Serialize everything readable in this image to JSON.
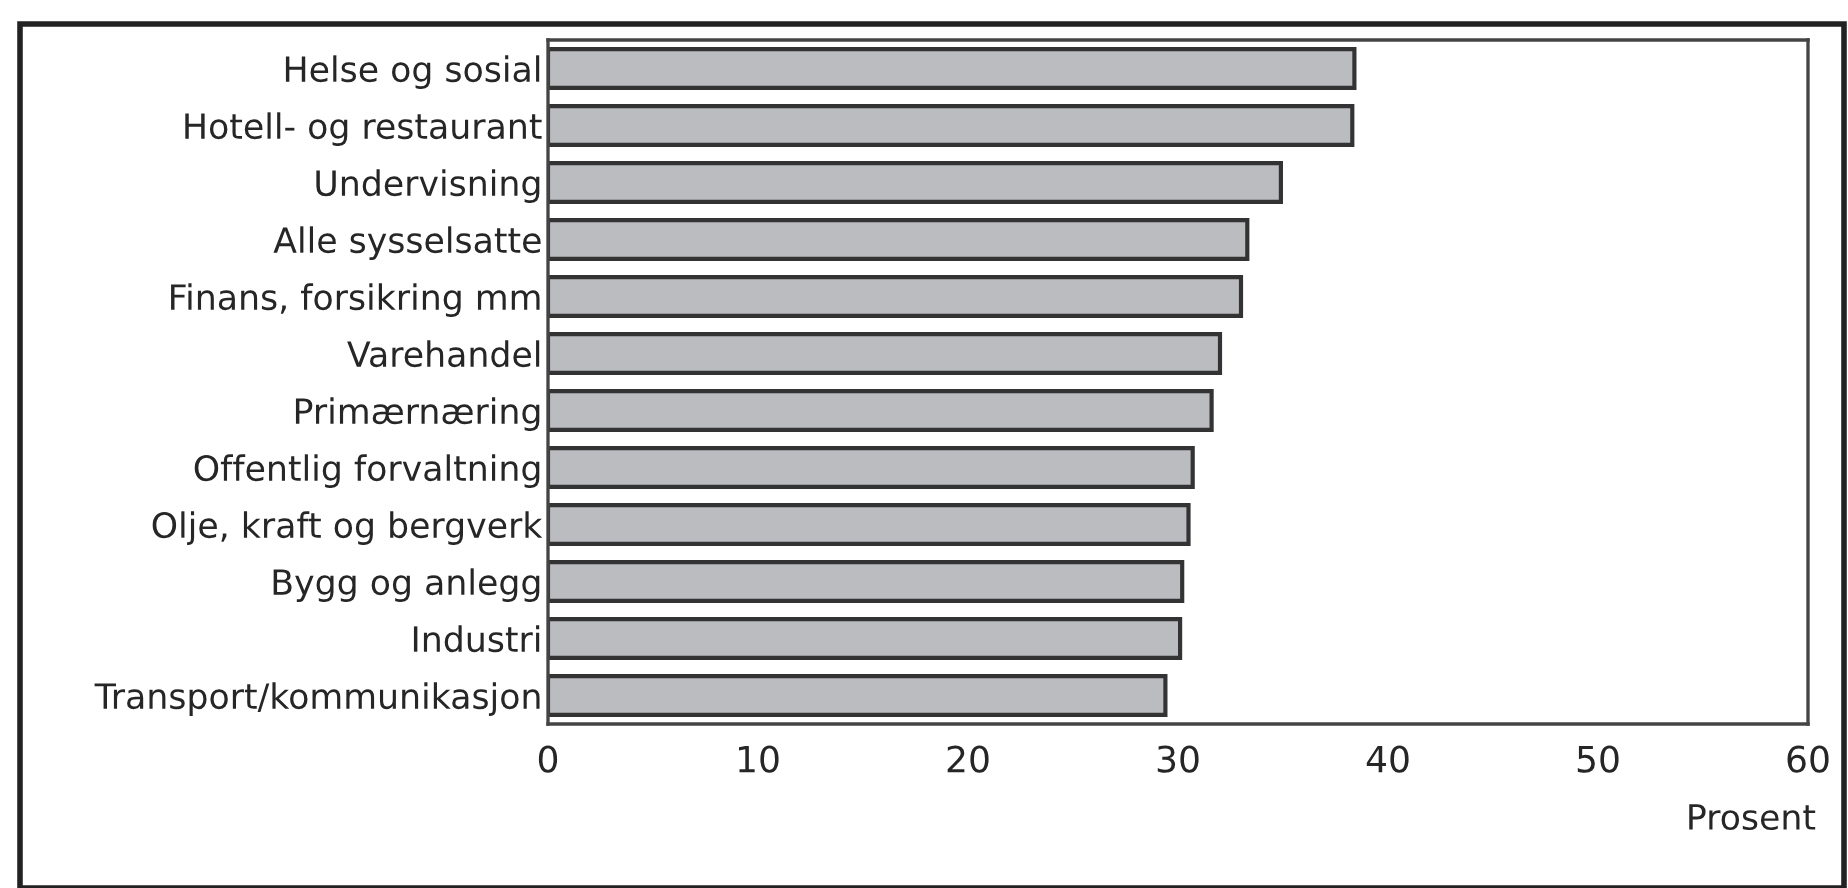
{
  "chart_data": {
    "type": "bar",
    "orientation": "horizontal",
    "categories": [
      "Helse og sosial",
      "Hotell- og restaurant",
      "Undervisning",
      "Alle sysselsatte",
      "Finans, forsikring mm",
      "Varehandel",
      "Primærnæring",
      "Offentlig forvaltning",
      "Olje, kraft og bergverk",
      "Bygg og anlegg",
      "Industri",
      "Transport/kommunikasjon"
    ],
    "values": [
      38.4,
      38.3,
      34.9,
      33.3,
      33.0,
      32.0,
      31.6,
      30.7,
      30.5,
      30.2,
      30.1,
      29.4
    ],
    "color": "#bbbcc0",
    "xlim": [
      0,
      60
    ],
    "xticks": [
      0,
      10,
      20,
      30,
      40,
      50,
      60
    ],
    "xlabel": "Prosent",
    "grid": false,
    "legend": false
  }
}
